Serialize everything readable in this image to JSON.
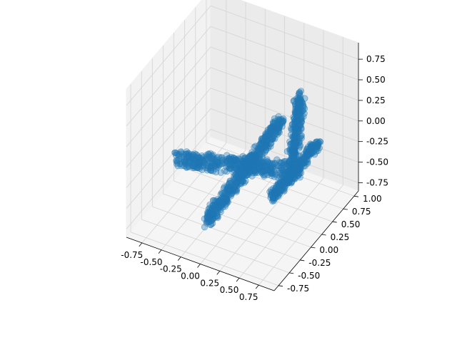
{
  "chart_data": {
    "type": "scatter",
    "projection": "3d",
    "title": "",
    "xlabel": "",
    "ylabel": "",
    "zlabel": "",
    "grid": true,
    "legend": "none",
    "xlim": [
      -0.95,
      0.95
    ],
    "ylim": [
      -0.85,
      1.1
    ],
    "zlim": [
      -0.85,
      0.95
    ],
    "x_ticks": [
      "-0.75",
      "-0.50",
      "-0.25",
      "0.00",
      "0.25",
      "0.50",
      "0.75"
    ],
    "y_ticks": [
      "-0.75",
      "-0.50",
      "-0.25",
      "0.00",
      "0.25",
      "0.50",
      "0.75",
      "1.00"
    ],
    "z_ticks": [
      "-0.75",
      "-0.50",
      "-0.25",
      "0.00",
      "0.25",
      "0.50",
      "0.75"
    ],
    "series": [
      {
        "color": "#1f77b4",
        "marker": "circle",
        "shape": "point cloud of an airplane",
        "parts": [
          {
            "part": "fuselage",
            "from": [
              -0.85,
              0.1,
              -0.45
            ],
            "to": [
              0.75,
              0.1,
              -0.05
            ],
            "radius": 0.1
          },
          {
            "part": "wing",
            "from": [
              0.05,
              -0.8,
              -0.35
            ],
            "to": [
              0.05,
              0.95,
              -0.2
            ],
            "radius": 0.08
          },
          {
            "part": "vertical-tail",
            "from": [
              0.65,
              0.1,
              -0.05
            ],
            "to": [
              0.75,
              0.1,
              0.85
            ],
            "radius": 0.08
          },
          {
            "part": "horizontal-stabilizer",
            "from": [
              0.7,
              -0.45,
              -0.05
            ],
            "to": [
              0.7,
              0.6,
              -0.05
            ],
            "radius": 0.06
          }
        ]
      }
    ]
  }
}
